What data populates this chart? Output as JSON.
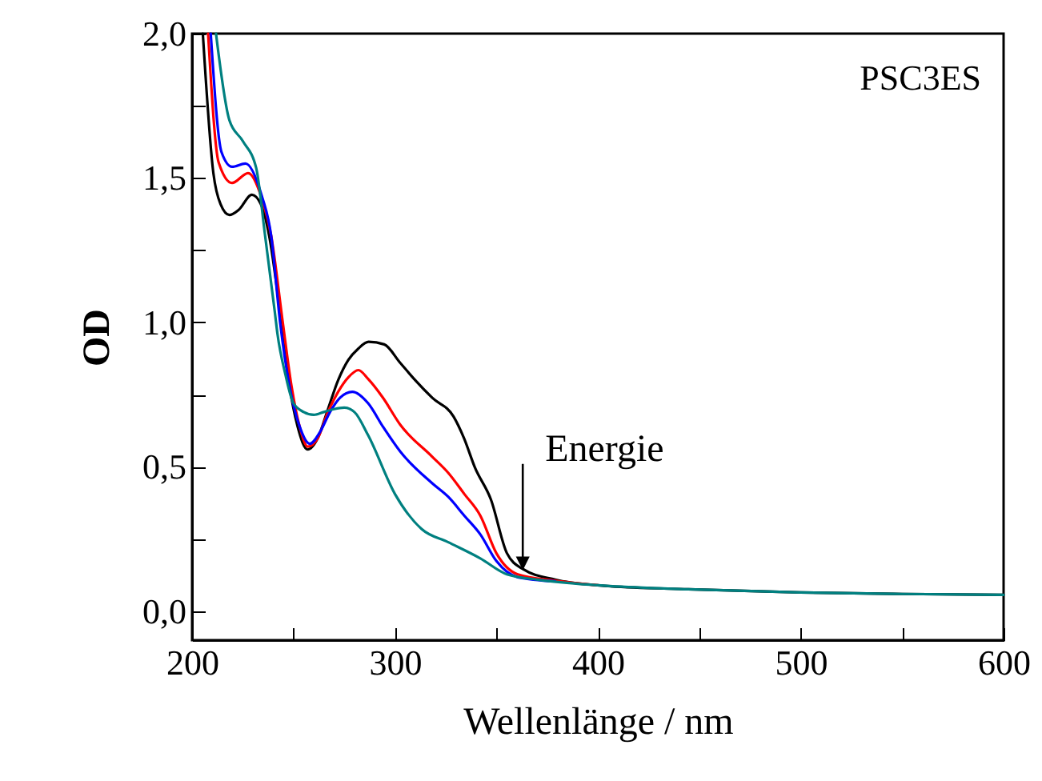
{
  "chart_data": {
    "type": "line",
    "xlabel": "Wellenlänge / nm",
    "ylabel": "OD",
    "xlim": [
      200,
      600
    ],
    "ylim": [
      -0.1,
      2.0
    ],
    "xticks": [
      200,
      {
        "value": 250,
        "label": null
      },
      300,
      {
        "value": 350,
        "label": null
      },
      400,
      {
        "value": 450,
        "label": null
      },
      500,
      {
        "value": 550,
        "label": null
      },
      600
    ],
    "yticks": [
      {
        "value": 0,
        "label": "0,0"
      },
      {
        "value": 0.25,
        "label": null
      },
      {
        "value": 0.5,
        "label": "0,5"
      },
      {
        "value": 0.75,
        "label": null
      },
      {
        "value": 1.0,
        "label": "1,0"
      },
      {
        "value": 1.25,
        "label": null
      },
      {
        "value": 1.5,
        "label": "1,5"
      },
      {
        "value": 1.75,
        "label": null
      },
      {
        "value": 2.0,
        "label": "2,0"
      }
    ],
    "annotations": [
      "PSC3ES",
      {
        "text": "Energie",
        "x": 363,
        "y": 0.15
      }
    ],
    "line_style": "solid",
    "series": [
      {
        "color": "#000000",
        "x": [
          205.3,
          210.5,
          214,
          218.4,
          223,
          229.5,
          234.2,
          238,
          243.4,
          248,
          252,
          257,
          262,
          267,
          272,
          277,
          282,
          287,
          294.7,
          302.6,
          310,
          318.4,
          328.9,
          334,
          339.4,
          347.3,
          355.2,
          363.1,
          378.9,
          400,
          444.6,
          500,
          550,
          600
        ],
        "values": [
          2.0,
          1.517,
          1.41,
          1.372,
          1.39,
          1.442,
          1.405,
          1.3,
          1.035,
          0.78,
          0.64,
          0.56,
          0.6,
          0.7,
          0.8,
          0.87,
          0.91,
          0.933,
          0.924,
          0.86,
          0.8,
          0.739,
          0.674,
          0.6,
          0.498,
          0.387,
          0.201,
          0.146,
          0.11,
          0.09,
          0.076,
          0.065,
          0.06,
          0.057
        ]
      },
      {
        "color": "#ff0000",
        "x": [
          207.9,
          213.1,
          219.7,
          227.6,
          234.2,
          239,
          244.7,
          249,
          253,
          257,
          262,
          267,
          272,
          277,
          282,
          286.8,
          294,
          302.6,
          318.4,
          326.3,
          334.2,
          342.1,
          350,
          360.5,
          378.9,
          400
        ],
        "values": [
          2.0,
          1.554,
          1.483,
          1.517,
          1.433,
          1.3,
          1.0,
          0.78,
          0.64,
          0.57,
          0.6,
          0.69,
          0.76,
          0.81,
          0.835,
          0.804,
          0.74,
          0.646,
          0.535,
          0.479,
          0.406,
          0.331,
          0.201,
          0.128,
          0.106,
          0.09
        ]
      },
      {
        "color": "#0000ff",
        "x": [
          209.2,
          214.5,
          219.7,
          226.3,
          234.2,
          239,
          243.4,
          248,
          253,
          258,
          263,
          268,
          273,
          279,
          286.8,
          294,
          302.6,
          318.4,
          326.3,
          334.2,
          342.1,
          350,
          360.5,
          378.9
        ],
        "values": [
          2.0,
          1.59,
          1.539,
          1.55,
          1.442,
          1.3,
          1.0,
          0.78,
          0.64,
          0.58,
          0.62,
          0.69,
          0.74,
          0.76,
          0.72,
          0.64,
          0.553,
          0.443,
          0.396,
          0.331,
          0.266,
          0.174,
          0.118,
          0.104
        ]
      },
      {
        "color": "#008080",
        "x": [
          211.8,
          218.4,
          225,
          231.6,
          236,
          240.8,
          242.1,
          246,
          250,
          255,
          260,
          265,
          270,
          275,
          280,
          286.8,
          300,
          313.1,
          326.3,
          342.1,
          355.2,
          371,
          400,
          444.6,
          500,
          550,
          600
        ],
        "values": [
          2.0,
          1.7,
          1.628,
          1.535,
          1.3,
          1.035,
          0.96,
          0.82,
          0.72,
          0.69,
          0.68,
          0.69,
          0.7,
          0.705,
          0.69,
          0.609,
          0.406,
          0.285,
          0.239,
          0.183,
          0.128,
          0.109,
          0.09,
          0.076,
          0.065,
          0.06,
          0.057
        ]
      }
    ]
  }
}
